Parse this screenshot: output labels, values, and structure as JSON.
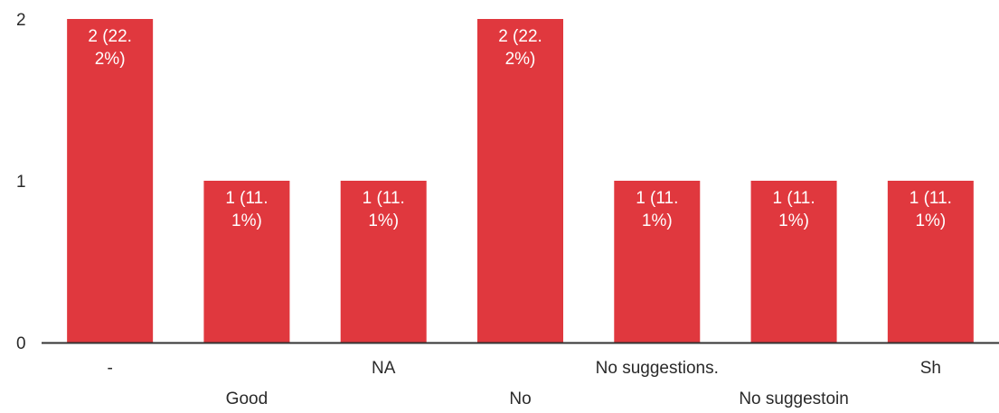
{
  "chart_data": {
    "type": "bar",
    "categories": [
      "-",
      "Good",
      "NA",
      "No",
      "No suggestions.",
      "No suggestoin",
      "Sh"
    ],
    "values": [
      2,
      1,
      1,
      2,
      1,
      1,
      1
    ],
    "data_labels": [
      [
        "2 (22.",
        "2%)"
      ],
      [
        "1 (11.",
        "1%)"
      ],
      [
        "1 (11.",
        "1%)"
      ],
      [
        "2 (22.",
        "2%)"
      ],
      [
        "1 (11.",
        "1%)"
      ],
      [
        "1 (11.",
        "1%)"
      ],
      [
        "1 (11.",
        "1%)"
      ]
    ],
    "yticks": [
      0,
      1,
      2
    ],
    "ylim": [
      0,
      2
    ],
    "grid": false,
    "bar_color": "#e0383e",
    "axis_color": "#333333"
  }
}
